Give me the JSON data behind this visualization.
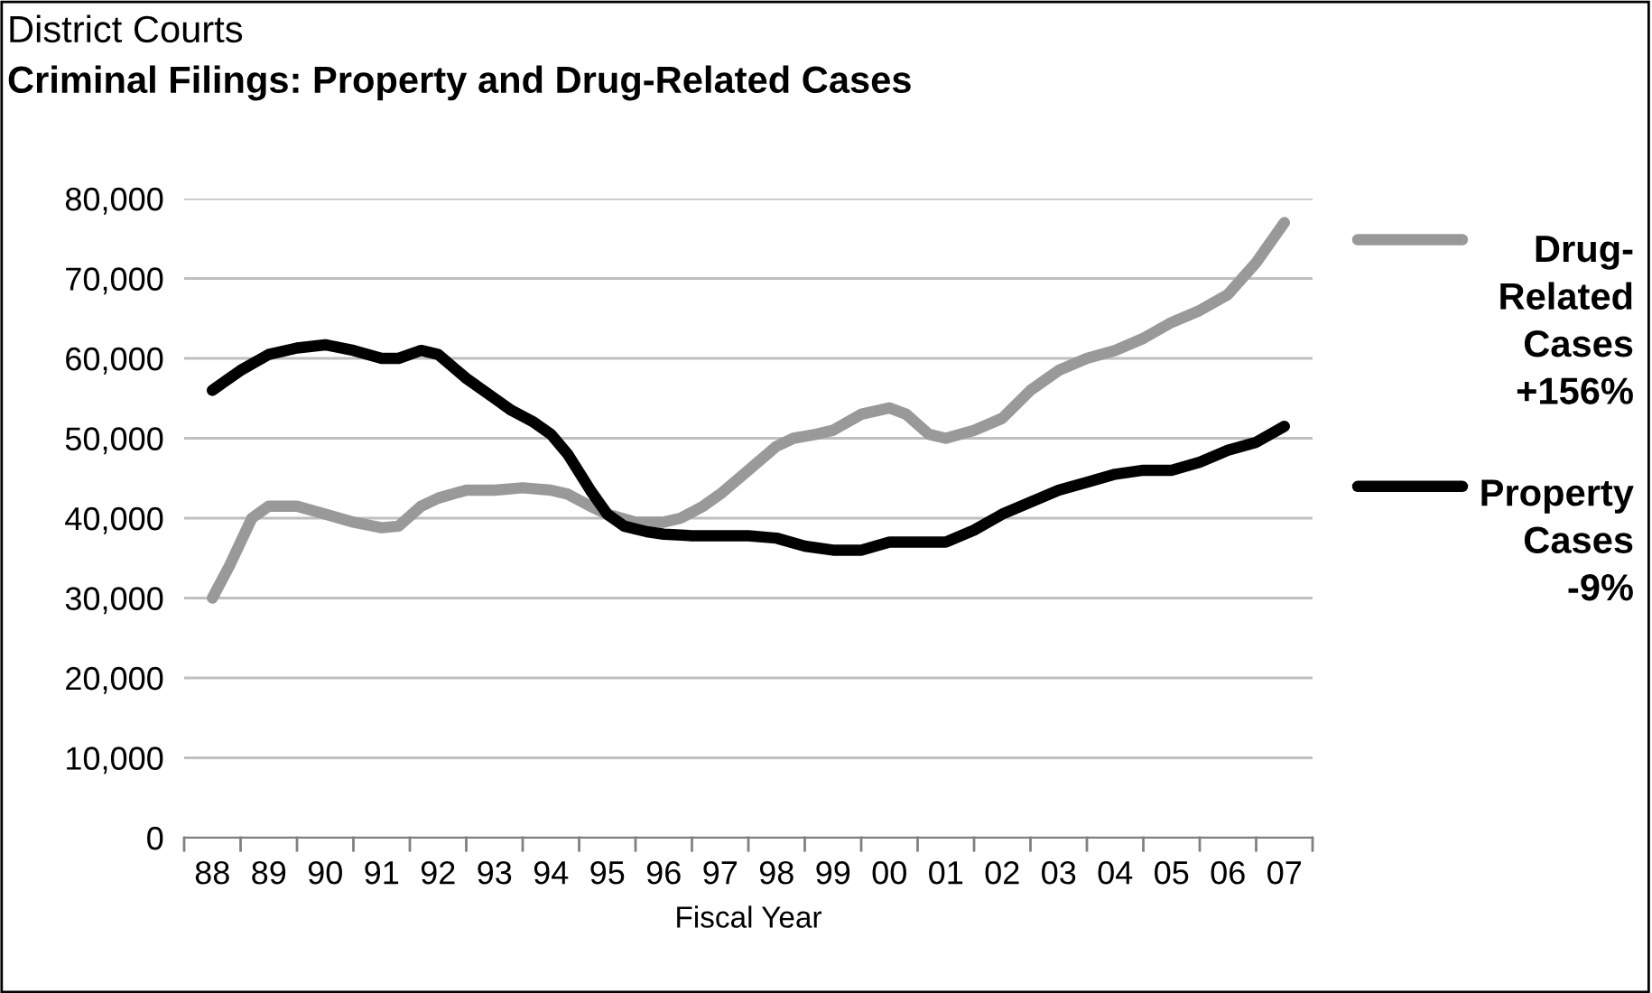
{
  "chart_data": {
    "type": "line",
    "title": "District Courts",
    "subtitle": "Criminal Filings: Property and Drug-Related Cases",
    "xlabel": "Fiscal Year",
    "xlim": [
      1987.5,
      2007.5
    ],
    "xticks": [
      {
        "value": 1987.5,
        "label": null
      },
      {
        "value": 1988,
        "label": "88"
      },
      {
        "value": 1988.5,
        "label": null
      },
      {
        "value": 1989,
        "label": "89"
      },
      {
        "value": 1989.5,
        "label": null
      },
      {
        "value": 1990,
        "label": "90"
      },
      {
        "value": 1990.5,
        "label": null
      },
      {
        "value": 1991,
        "label": "91"
      },
      {
        "value": 1991.5,
        "label": null
      },
      {
        "value": 1992,
        "label": "92"
      },
      {
        "value": 1992.5,
        "label": null
      },
      {
        "value": 1993,
        "label": "93"
      },
      {
        "value": 1993.5,
        "label": null
      },
      {
        "value": 1994,
        "label": "94"
      },
      {
        "value": 1994.5,
        "label": null
      },
      {
        "value": 1995,
        "label": "95"
      },
      {
        "value": 1995.5,
        "label": null
      },
      {
        "value": 1996,
        "label": "96"
      },
      {
        "value": 1996.5,
        "label": null
      },
      {
        "value": 1997,
        "label": "97"
      },
      {
        "value": 1997.5,
        "label": null
      },
      {
        "value": 1998,
        "label": "98"
      },
      {
        "value": 1998.5,
        "label": null
      },
      {
        "value": 1999,
        "label": "99"
      },
      {
        "value": 1999.5,
        "label": null
      },
      {
        "value": 2000,
        "label": "00"
      },
      {
        "value": 2000.5,
        "label": null
      },
      {
        "value": 2001,
        "label": "01"
      },
      {
        "value": 2001.5,
        "label": null
      },
      {
        "value": 2002,
        "label": "02"
      },
      {
        "value": 2002.5,
        "label": null
      },
      {
        "value": 2003,
        "label": "03"
      },
      {
        "value": 2003.5,
        "label": null
      },
      {
        "value": 2004,
        "label": "04"
      },
      {
        "value": 2004.5,
        "label": null
      },
      {
        "value": 2005,
        "label": "05"
      },
      {
        "value": 2005.5,
        "label": null
      },
      {
        "value": 2006,
        "label": "06"
      },
      {
        "value": 2006.5,
        "label": null
      },
      {
        "value": 2007,
        "label": "07"
      },
      {
        "value": 2007.5,
        "label": null
      }
    ],
    "ylim": [
      0,
      80000
    ],
    "yticks": [
      {
        "value": 0,
        "label": "0"
      },
      {
        "value": 10000,
        "label": "10,000"
      },
      {
        "value": 20000,
        "label": "20,000"
      },
      {
        "value": 30000,
        "label": "30,000"
      },
      {
        "value": 40000,
        "label": "40,000"
      },
      {
        "value": 50000,
        "label": "50,000"
      },
      {
        "value": 60000,
        "label": "60,000"
      },
      {
        "value": 70000,
        "label": "70,000"
      },
      {
        "value": 80000,
        "label": "80,000"
      }
    ],
    "grid": "y",
    "legend": "right",
    "marker": "none",
    "line_style": "solid",
    "annotations": [
      "+156%",
      "-9%"
    ],
    "series": [
      {
        "name": "Drug-Related Cases",
        "color": "#999999",
        "x": [
          1988,
          1988.3,
          1988.7,
          1989,
          1989.5,
          1990,
          1990.5,
          1991,
          1991.3,
          1991.7,
          1992,
          1992.5,
          1993,
          1993.5,
          1994,
          1994.3,
          1994.7,
          1995,
          1995.5,
          1996,
          1996.3,
          1996.7,
          1997,
          1997.5,
          1998,
          1998.3,
          1998.7,
          1999,
          1999.5,
          2000,
          2000.3,
          2000.7,
          2001,
          2001.5,
          2002,
          2002.5,
          2003,
          2003.5,
          2004,
          2004.5,
          2005,
          2005.5,
          2006,
          2006.5,
          2007
        ],
        "values": [
          30000,
          34000,
          40000,
          41500,
          41500,
          40500,
          39500,
          38800,
          39000,
          41500,
          42500,
          43500,
          43500,
          43800,
          43500,
          43000,
          41500,
          40500,
          39500,
          39500,
          40000,
          41500,
          43000,
          46000,
          49000,
          50000,
          50500,
          51000,
          53000,
          53800,
          53000,
          50500,
          50000,
          51000,
          52500,
          56000,
          58500,
          60000,
          61000,
          62500,
          64500,
          66000,
          68000,
          72000,
          77000
        ]
      },
      {
        "name": "Property Cases",
        "color": "#000000",
        "x": [
          1988,
          1988.5,
          1989,
          1989.5,
          1990,
          1990.5,
          1991,
          1991.3,
          1991.7,
          1992,
          1992.5,
          1993,
          1993.3,
          1993.7,
          1994,
          1994.3,
          1994.7,
          1995,
          1995.3,
          1995.7,
          1996,
          1996.5,
          1997,
          1997.5,
          1998,
          1998.5,
          1999,
          1999.5,
          2000,
          2000.5,
          2001,
          2001.5,
          2002,
          2002.5,
          2003,
          2003.5,
          2004,
          2004.5,
          2005,
          2005.5,
          2006,
          2006.5,
          2007
        ],
        "values": [
          56000,
          58500,
          60500,
          61300,
          61700,
          61000,
          60000,
          60000,
          61000,
          60500,
          57500,
          55000,
          53500,
          52000,
          50500,
          48000,
          43500,
          40500,
          39000,
          38300,
          38000,
          37800,
          37800,
          37800,
          37500,
          36500,
          36000,
          36000,
          37000,
          37000,
          37000,
          38500,
          40500,
          42000,
          43500,
          44500,
          45500,
          46000,
          46000,
          47000,
          48500,
          49500,
          51500
        ]
      }
    ]
  }
}
